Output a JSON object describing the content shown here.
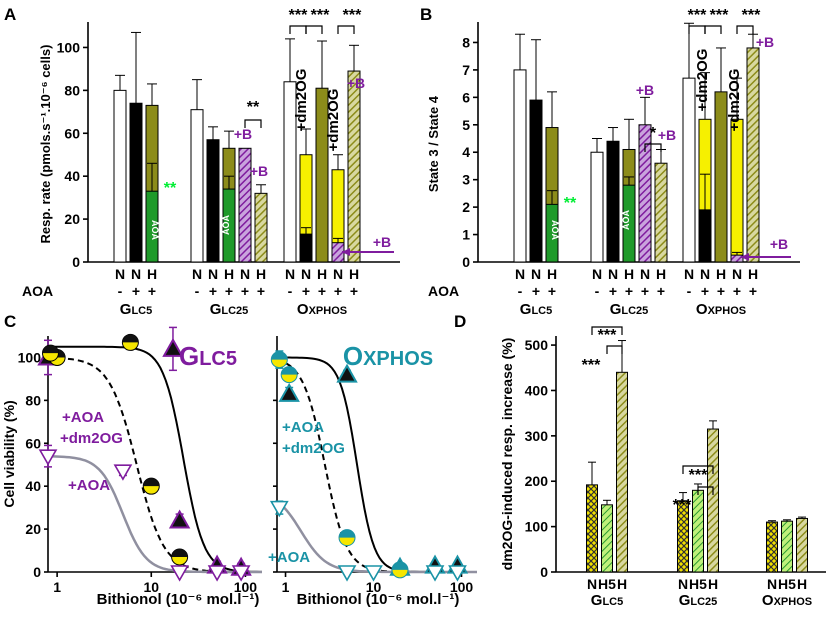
{
  "colors": {
    "purple": "#7f1c9e",
    "teal": "#1a93a6",
    "green": "#00ee33",
    "olive": "#8c8c1a",
    "yellow": "#f6f000",
    "darkgreen": "#1f8a2a"
  },
  "chart_data": [
    {
      "panel": "A",
      "type": "bar",
      "ylabel": "Resp. rate (pmols.s⁻¹.10⁻⁶ cells)",
      "ylim": [
        0,
        110
      ],
      "yticks": [
        0,
        20,
        40,
        60,
        80,
        100
      ],
      "row1_label": "",
      "row2_label": "AOA",
      "groups": [
        {
          "name": "Glc5",
          "bars": [
            {
              "cell": "N",
              "aoa": "-",
              "value": 80,
              "err": 7,
              "style": "white"
            },
            {
              "cell": "N",
              "aoa": "+",
              "value": 74,
              "err": 33,
              "style": "black"
            },
            {
              "cell": "H",
              "aoa": "+",
              "value": 73,
              "err": 10,
              "style": "olive",
              "inner": 33,
              "inner_err": 13,
              "inner_style": "green"
            }
          ]
        },
        {
          "name": "Glc25",
          "bars": [
            {
              "cell": "N",
              "aoa": "-",
              "value": 71,
              "err": 14,
              "style": "white"
            },
            {
              "cell": "N",
              "aoa": "+",
              "value": 57,
              "err": 6,
              "style": "black"
            },
            {
              "cell": "H",
              "aoa": "+",
              "value": 53,
              "err": 8,
              "style": "olive",
              "inner": 34,
              "inner_err": 6,
              "inner_style": "green"
            },
            {
              "cell": "H",
              "aoa": "+",
              "value": 53,
              "err": 0,
              "style": "purple-hatch"
            },
            {
              "cell": "H",
              "aoa": "+",
              "value": 32,
              "err": 4,
              "style": "olive-hatch"
            }
          ]
        },
        {
          "name": "Oxphos",
          "bars": [
            {
              "cell": "N",
              "aoa": "-",
              "value": 84,
              "err": 20,
              "style": "white"
            },
            {
              "cell": "N",
              "aoa": "+",
              "value": 50,
              "err": 12,
              "style": "yellow",
              "inner": 13,
              "inner_err": 3,
              "inner_style": "black"
            },
            {
              "cell": "H",
              "aoa": "+",
              "value": 81,
              "err": 22,
              "style": "olive"
            },
            {
              "cell": "H",
              "aoa": "+",
              "value": 43,
              "err": 7,
              "style": "yellow",
              "inner": 9,
              "inner_err": 2,
              "inner_style": "purple-hatch"
            },
            {
              "cell": "H",
              "aoa": "+",
              "value": 89,
              "err": 12,
              "style": "olive-hatch"
            }
          ]
        }
      ],
      "significance": [
        "***",
        "***",
        "***",
        "**"
      ],
      "annotations": [
        "**",
        "AOA",
        "+B",
        "+dm2OG"
      ],
      "categories": [
        "Glc5",
        "Glc25",
        "Oxphos"
      ],
      "cell_labels": [
        "N",
        "N",
        "H",
        "N",
        "N",
        "H",
        "N",
        "H",
        "N",
        "N",
        "H",
        "N",
        "H"
      ],
      "aoa_labels": [
        "-",
        "+",
        "+",
        "-",
        "+",
        "+",
        "+",
        "+",
        "-",
        "+",
        "+",
        "+",
        "+"
      ]
    },
    {
      "panel": "B",
      "type": "bar",
      "ylabel": "State 3 / State 4",
      "ylim": [
        0,
        8.6
      ],
      "yticks": [
        0,
        1,
        2,
        3,
        4,
        5,
        6,
        7,
        8
      ],
      "groups": [
        {
          "name": "Glc5",
          "bars": [
            {
              "value": 7.0,
              "err": 1.3,
              "style": "white"
            },
            {
              "value": 5.9,
              "err": 2.2,
              "style": "black"
            },
            {
              "value": 4.9,
              "err": 1.3,
              "style": "olive",
              "inner": 2.1,
              "inner_err": 0.5,
              "inner_style": "green"
            }
          ]
        },
        {
          "name": "Glc25",
          "bars": [
            {
              "value": 4.0,
              "err": 0.5,
              "style": "white"
            },
            {
              "value": 4.4,
              "err": 0.5,
              "style": "black"
            },
            {
              "value": 4.1,
              "err": 1.1,
              "style": "olive",
              "inner": 2.8,
              "inner_err": 0.3,
              "inner_style": "green"
            },
            {
              "value": 5.0,
              "err": 1.0,
              "style": "purple-hatch"
            },
            {
              "value": 3.6,
              "err": 0.5,
              "style": "olive-hatch"
            }
          ]
        },
        {
          "name": "Oxphos",
          "bars": [
            {
              "value": 6.7,
              "err": 2.0,
              "style": "white"
            },
            {
              "value": 5.2,
              "err": 1.7,
              "style": "yellow",
              "inner": 1.9,
              "inner_err": 1.3,
              "inner_style": "black"
            },
            {
              "value": 6.2,
              "err": 1.6,
              "style": "olive"
            },
            {
              "value": 5.2,
              "err": 1.5,
              "style": "yellow",
              "inner": 0.25,
              "inner_err": 0.1,
              "inner_style": "purple-hatch"
            },
            {
              "value": 7.8,
              "err": 0.5,
              "style": "olive-hatch"
            }
          ]
        }
      ],
      "significance": [
        "***",
        "***",
        "***",
        "*"
      ],
      "annotations": [
        "**",
        "AOA",
        "+B",
        "+dm2OG"
      ]
    },
    {
      "panel": "C",
      "type": "scatter",
      "title": "Glc5",
      "xlabel": "Bithionol (10⁻⁶ mol.l⁻¹)",
      "ylabel": "Cell viability (%)",
      "xscale": "log",
      "xlim": [
        0.8,
        150
      ],
      "ylim": [
        0,
        110
      ],
      "xticks": [
        1,
        10,
        100
      ],
      "yticks": [
        0,
        20,
        40,
        60,
        80,
        100
      ],
      "series": [
        {
          "name": "N",
          "marker": "triangle-filled",
          "x": [
            0.8,
            20,
            50,
            90
          ],
          "y": [
            100,
            24,
            3,
            2
          ],
          "err": [
            8,
            3,
            2,
            2
          ]
        },
        {
          "name": "N +AOA +dm2OG",
          "marker": "circle-half",
          "x": [
            1,
            6,
            10,
            20
          ],
          "y": [
            100,
            107,
            40,
            7
          ],
          "err": [
            0,
            0,
            0,
            0
          ]
        },
        {
          "name": "H",
          "marker": "triangle-filled",
          "x": [
            17
          ],
          "y": [
            104
          ],
          "err": [
            10
          ]
        },
        {
          "name": "H +AOA",
          "marker": "triangle-open",
          "x": [
            0.8,
            5,
            20,
            50,
            90
          ],
          "y": [
            54,
            47,
            0,
            0,
            0
          ],
          "err": [
            5,
            2,
            0,
            0,
            0
          ]
        },
        {
          "name": "circle top",
          "marker": "circle-half",
          "x": [
            0.85
          ],
          "y": [
            102
          ],
          "err": [
            0
          ]
        }
      ],
      "fits": [
        {
          "style": "solid",
          "top": 105,
          "bottom": 0,
          "ec50": 22,
          "hill": 4
        },
        {
          "style": "dashed",
          "top": 100,
          "bottom": 0,
          "ec50": 7,
          "hill": 3
        },
        {
          "style": "gray",
          "top": 54,
          "bottom": 0,
          "ec50": 5,
          "hill": 3.5
        }
      ],
      "annotations": [
        "+AOA",
        "+dm2OG",
        "+AOA"
      ]
    },
    {
      "panel": "C2",
      "type": "scatter",
      "title": "Oxphos",
      "xscale": "log",
      "xlim": [
        0.8,
        150
      ],
      "ylim": [
        0,
        110
      ],
      "xticks": [
        1,
        10,
        100
      ],
      "series": [
        {
          "name": "N",
          "marker": "triangle-filled",
          "x": [
            1.1,
            5,
            20,
            50,
            90
          ],
          "y": [
            83,
            92,
            2,
            3,
            3
          ],
          "err": [
            3,
            2,
            0,
            0,
            0
          ]
        },
        {
          "name": "N +AOA +dm2OG",
          "marker": "circle-half",
          "x": [
            0.85,
            1.1,
            5,
            20
          ],
          "y": [
            99,
            92,
            16,
            1
          ],
          "err": [
            4,
            0,
            0,
            0
          ]
        },
        {
          "name": "H +AOA",
          "marker": "triangle-open",
          "x": [
            0.85,
            5,
            10,
            50,
            90
          ],
          "y": [
            30,
            0,
            0,
            0,
            0
          ],
          "err": [
            3,
            0,
            0,
            0,
            0
          ]
        }
      ],
      "fits": [
        {
          "style": "solid",
          "top": 100,
          "bottom": 0,
          "ec50": 6.5,
          "hill": 4.5
        },
        {
          "style": "dashed",
          "top": 100,
          "bottom": 0,
          "ec50": 2.8,
          "hill": 3.5
        },
        {
          "style": "gray",
          "top": 38,
          "bottom": 0,
          "ec50": 1.5,
          "hill": 3
        }
      ],
      "annotations": [
        "+AOA",
        "+dm2OG",
        "+AOA"
      ]
    },
    {
      "panel": "D",
      "type": "bar",
      "ylabel": "dm2OG-induced resp. increase (%)",
      "ylim": [
        0,
        520
      ],
      "yticks": [
        0,
        100,
        200,
        300,
        400,
        500
      ],
      "categories": [
        "Glc5",
        "Glc25",
        "Oxphos"
      ],
      "series": [
        {
          "name": "N",
          "values": [
            192,
            157,
            110
          ],
          "err": [
            50,
            18,
            3
          ],
          "style": "yellow-crosshatch"
        },
        {
          "name": "H5",
          "values": [
            148,
            180,
            112
          ],
          "err": [
            10,
            14,
            3
          ],
          "style": "green-hatch"
        },
        {
          "name": "H",
          "values": [
            440,
            315,
            118
          ],
          "err": [
            70,
            18,
            3
          ],
          "style": "olive-hatch"
        }
      ],
      "bar_labels": [
        "N",
        "H5",
        "H"
      ],
      "significance": [
        "***",
        "***",
        "***",
        "***"
      ]
    }
  ],
  "panels": {
    "A": "A",
    "B": "B",
    "C": "C",
    "D": "D"
  },
  "tl": {
    "minus": "-",
    "plus": "+",
    "N": "N",
    "H": "H",
    "H5": "H5",
    "aoa": "AOA",
    "aoa_plus": "+AOA",
    "dm2og_plus": "+dm2OG",
    "b": "+B",
    "dm2og": "+dm2OG",
    "s3": "***",
    "s2": "**",
    "s1": "*"
  },
  "group_labels": {
    "glc5": "Glc5",
    "glc25": "Glc25",
    "oxphos": "Oxphos"
  },
  "c_titles": {
    "glc5": "Glc5",
    "oxphos": "Oxphos"
  }
}
